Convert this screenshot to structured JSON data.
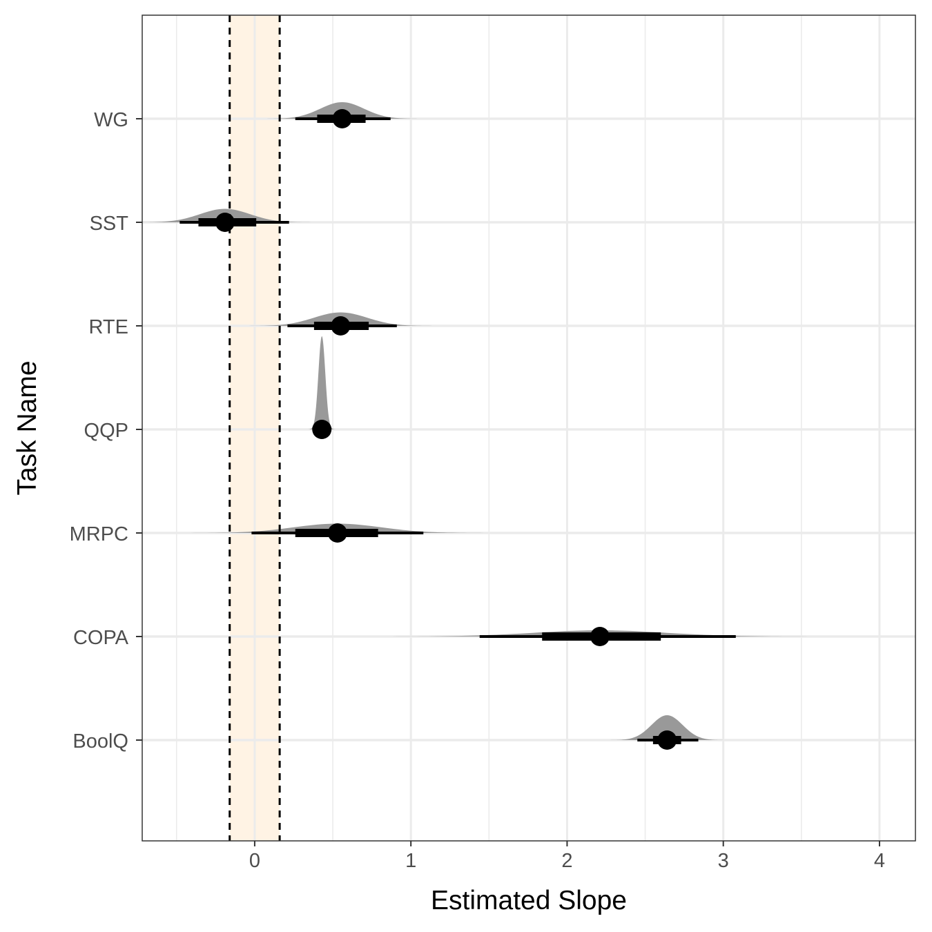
{
  "chart_data": {
    "type": "interval-density",
    "title": "",
    "xlabel": "Estimated Slope",
    "ylabel": "Task Name",
    "xlim": [
      -0.72,
      4.23
    ],
    "xticks": [
      0,
      1,
      2,
      3,
      4
    ],
    "xtick_labels": [
      "0",
      "1",
      "2",
      "3",
      "4"
    ],
    "minor_xticks": [
      -0.5,
      0.5,
      1.5,
      2.5,
      3.5
    ],
    "grid": true,
    "rope": {
      "low": -0.16,
      "high": 0.16,
      "fill": "#fff2e1"
    },
    "colors": {
      "density": "#999999",
      "interval": "#000000",
      "grid": "#ebebeb",
      "reference_line": "#000000"
    },
    "categories": [
      "WG",
      "SST",
      "RTE",
      "QQP",
      "MRPC",
      "COPA",
      "BoolQ"
    ],
    "series": [
      {
        "task": "WG",
        "median": 0.56,
        "sd": 0.14,
        "height": 0.16,
        "inner": [
          0.4,
          0.71
        ],
        "outer": [
          0.26,
          0.87
        ]
      },
      {
        "task": "SST",
        "median": -0.19,
        "sd": 0.16,
        "height": 0.13,
        "inner": [
          -0.36,
          0.01
        ],
        "outer": [
          -0.48,
          0.22
        ]
      },
      {
        "task": "RTE",
        "median": 0.55,
        "sd": 0.17,
        "height": 0.13,
        "inner": [
          0.38,
          0.73
        ],
        "outer": [
          0.21,
          0.91
        ]
      },
      {
        "task": "QQP",
        "median": 0.43,
        "sd": 0.022,
        "height": 0.9,
        "inner": [
          0.41,
          0.45
        ],
        "outer": [
          0.4,
          0.46
        ]
      },
      {
        "task": "MRPC",
        "median": 0.53,
        "sd": 0.28,
        "height": 0.09,
        "inner": [
          0.26,
          0.79
        ],
        "outer": [
          -0.02,
          1.08
        ]
      },
      {
        "task": "COPA",
        "median": 2.21,
        "sd": 0.42,
        "height": 0.06,
        "inner": [
          1.84,
          2.6
        ],
        "outer": [
          1.44,
          3.08
        ]
      },
      {
        "task": "BoolQ",
        "median": 2.64,
        "sd": 0.1,
        "height": 0.24,
        "inner": [
          2.55,
          2.73
        ],
        "outer": [
          2.45,
          2.84
        ]
      }
    ]
  }
}
